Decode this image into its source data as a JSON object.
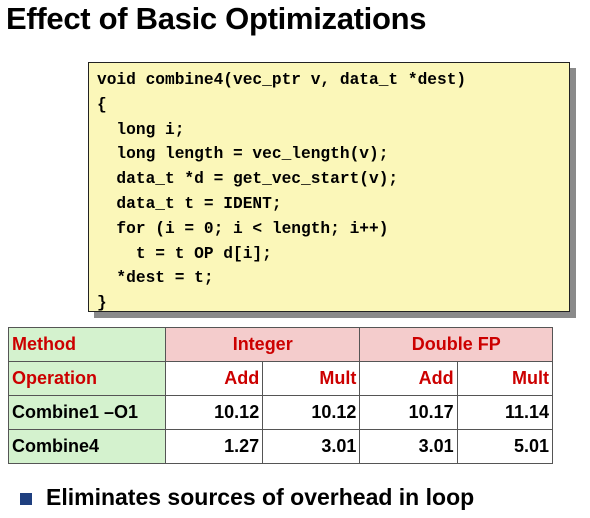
{
  "title": "Effect of Basic Optimizations",
  "code": {
    "lines": [
      "void combine4(vec_ptr v, data_t *dest)",
      "{",
      "  long i;",
      "  long length = vec_length(v);",
      "  data_t *d = get_vec_start(v);",
      "  data_t t = IDENT;",
      "  for (i = 0; i < length; i++)",
      "    t = t OP d[i];",
      "  *dest = t;",
      "}"
    ]
  },
  "table": {
    "method_label": "Method",
    "integer_label": "Integer",
    "double_label": "Double FP",
    "operation_label": "Operation",
    "ops": [
      "Add",
      "Mult",
      "Add",
      "Mult"
    ],
    "rows": [
      {
        "name": "Combine1 –O1",
        "values": [
          "10.12",
          "10.12",
          "10.17",
          "11.14"
        ]
      },
      {
        "name": "Combine4",
        "values": [
          "1.27",
          "3.01",
          "3.01",
          "5.01"
        ]
      }
    ],
    "colors": {
      "header_red": "#cc0000",
      "group_bg": "#f4cccc",
      "rowhead_bg": "#d4f2ce"
    }
  },
  "bullet": {
    "text": "Eliminates sources of overhead in loop",
    "icon": "square-bullet-icon",
    "color": "#1f3f7f"
  },
  "code_box": {
    "background": "#fbf7b9",
    "shadow": "#8a8a8a"
  }
}
